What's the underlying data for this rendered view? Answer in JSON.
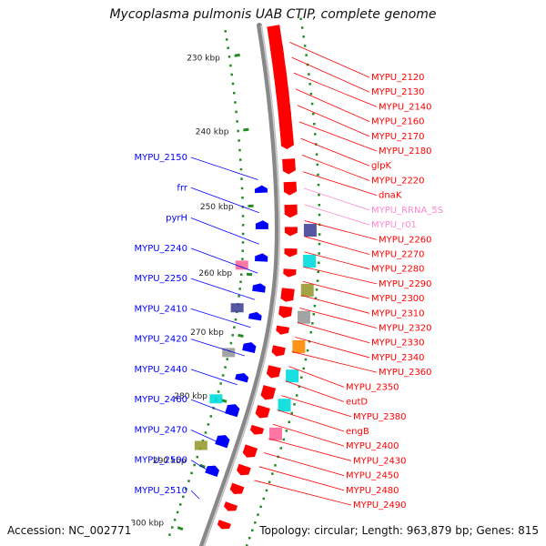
{
  "title": "Mycoplasma pulmonis UAB CTIP, complete genome",
  "footer": {
    "accession": "Accession: NC_002771",
    "topology": "Topology: circular; Length: 963,879 bp; Genes: 815"
  },
  "colors": {
    "forward": "#ff0000",
    "reverse": "#0000ff",
    "rna": "#ff88cc",
    "backbone": "#888888",
    "ticks": "#228b22",
    "cog_cyan": "#00dddd",
    "cog_navy": "#444499",
    "cog_olive": "#999933",
    "cog_pink": "#ff6699",
    "cog_grey": "#999999",
    "cog_orange": "#ff8800"
  },
  "ruler": [
    "230 kbp",
    "240 kbp",
    "250 kbp",
    "260 kbp",
    "270 kbp",
    "280 kbp",
    "290 kbp",
    "300 kbp"
  ],
  "left_labels": [
    "MYPU_2150",
    "frr",
    "pyrH",
    "MYPU_2240",
    "MYPU_2250",
    "MYPU_2410",
    "MYPU_2420",
    "MYPU_2440",
    "MYPU_2460",
    "MYPU_2470",
    "MYPU_2500",
    "MYPU_2510"
  ],
  "right_labels": [
    {
      "text": "MYPU_2120",
      "type": "forward"
    },
    {
      "text": "MYPU_2130",
      "type": "forward"
    },
    {
      "text": "MYPU_2140",
      "type": "forward"
    },
    {
      "text": "MYPU_2160",
      "type": "forward"
    },
    {
      "text": "MYPU_2170",
      "type": "forward"
    },
    {
      "text": "MYPU_2180",
      "type": "forward"
    },
    {
      "text": "glpK",
      "type": "forward"
    },
    {
      "text": "MYPU_2220",
      "type": "forward"
    },
    {
      "text": "dnaK",
      "type": "forward"
    },
    {
      "text": "MYPU_RRNA_5S",
      "type": "rna"
    },
    {
      "text": "MYPU_r01",
      "type": "rna"
    },
    {
      "text": "MYPU_2260",
      "type": "forward"
    },
    {
      "text": "MYPU_2270",
      "type": "forward"
    },
    {
      "text": "MYPU_2280",
      "type": "forward"
    },
    {
      "text": "MYPU_2290",
      "type": "forward"
    },
    {
      "text": "MYPU_2300",
      "type": "forward"
    },
    {
      "text": "MYPU_2310",
      "type": "forward"
    },
    {
      "text": "MYPU_2320",
      "type": "forward"
    },
    {
      "text": "MYPU_2330",
      "type": "forward"
    },
    {
      "text": "MYPU_2340",
      "type": "forward"
    },
    {
      "text": "MYPU_2360",
      "type": "forward"
    },
    {
      "text": "MYPU_2350",
      "type": "forward"
    },
    {
      "text": "eutD",
      "type": "forward"
    },
    {
      "text": "MYPU_2380",
      "type": "forward"
    },
    {
      "text": "engB",
      "type": "forward"
    },
    {
      "text": "MYPU_2400",
      "type": "forward"
    },
    {
      "text": "MYPU_2430",
      "type": "forward"
    },
    {
      "text": "MYPU_2450",
      "type": "forward"
    },
    {
      "text": "MYPU_2480",
      "type": "forward"
    },
    {
      "text": "MYPU_2490",
      "type": "forward"
    }
  ],
  "forward_genes": [
    {
      "length": 40
    },
    {
      "length": 42
    },
    {
      "length": 34
    },
    {
      "length": 30
    },
    {
      "length": 28
    },
    {
      "length": 14
    },
    {
      "length": 16
    },
    {
      "length": 14
    },
    {
      "length": 14
    },
    {
      "length": 10
    },
    {
      "length": 10
    },
    {
      "length": 10
    },
    {
      "length": 18
    },
    {
      "length": 14
    },
    {
      "length": 10
    },
    {
      "length": 12
    },
    {
      "length": 14
    },
    {
      "length": 16
    },
    {
      "length": 14
    },
    {
      "length": 10
    },
    {
      "length": 14
    },
    {
      "length": 12
    },
    {
      "length": 12
    },
    {
      "length": 10
    },
    {
      "length": 10
    }
  ],
  "reverse_genes": [
    {
      "length": 8
    },
    {
      "length": 10
    },
    {
      "length": 10
    },
    {
      "length": 12
    },
    {
      "length": 10
    },
    {
      "length": 12
    },
    {
      "length": 10
    },
    {
      "length": 14
    },
    {
      "length": 14
    },
    {
      "length": 12
    }
  ]
}
